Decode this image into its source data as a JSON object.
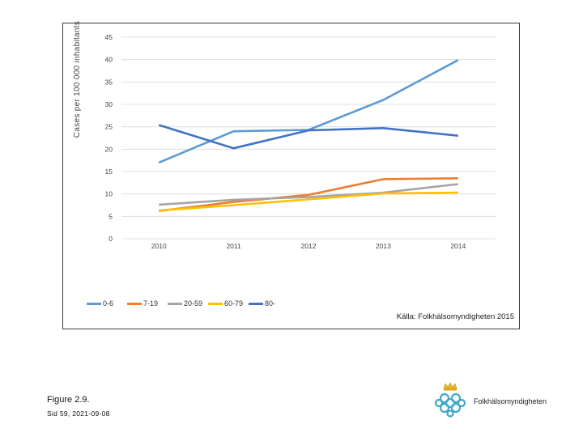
{
  "chart_data": {
    "type": "line",
    "title": "",
    "xlabel": "",
    "ylabel": "Cases per 100 000 inhabitants",
    "ylim": [
      0,
      45
    ],
    "yticks": [
      0,
      5,
      10,
      15,
      20,
      25,
      30,
      35,
      40,
      45
    ],
    "categories": [
      "2010",
      "2011",
      "2012",
      "2013",
      "2014"
    ],
    "grid": true,
    "legend_position": "bottom-left",
    "series": [
      {
        "name": "0-6",
        "color": "#5b9bd5",
        "values": [
          17.0,
          24.0,
          24.3,
          31.0,
          39.9
        ]
      },
      {
        "name": "7-19",
        "color": "#ed7d31",
        "values": [
          6.2,
          8.2,
          9.8,
          13.3,
          13.5
        ]
      },
      {
        "name": "20-59",
        "color": "#a5a5a5",
        "values": [
          7.6,
          8.7,
          9.3,
          10.3,
          12.2
        ]
      },
      {
        "name": "60-79",
        "color": "#ffc000",
        "values": [
          6.3,
          7.5,
          8.8,
          10.1,
          10.3
        ]
      },
      {
        "name": "80-",
        "color": "#4472c4",
        "values": [
          25.4,
          20.2,
          24.2,
          24.7,
          23.0
        ]
      }
    ],
    "source": "Källa: Folkhälsomyndigheten 2015"
  },
  "figure": {
    "caption": "Figure 2.9.",
    "footnote": "Sid 59, 2021-09-08"
  },
  "logo": {
    "name": "Folkhälsomyndigheten"
  }
}
